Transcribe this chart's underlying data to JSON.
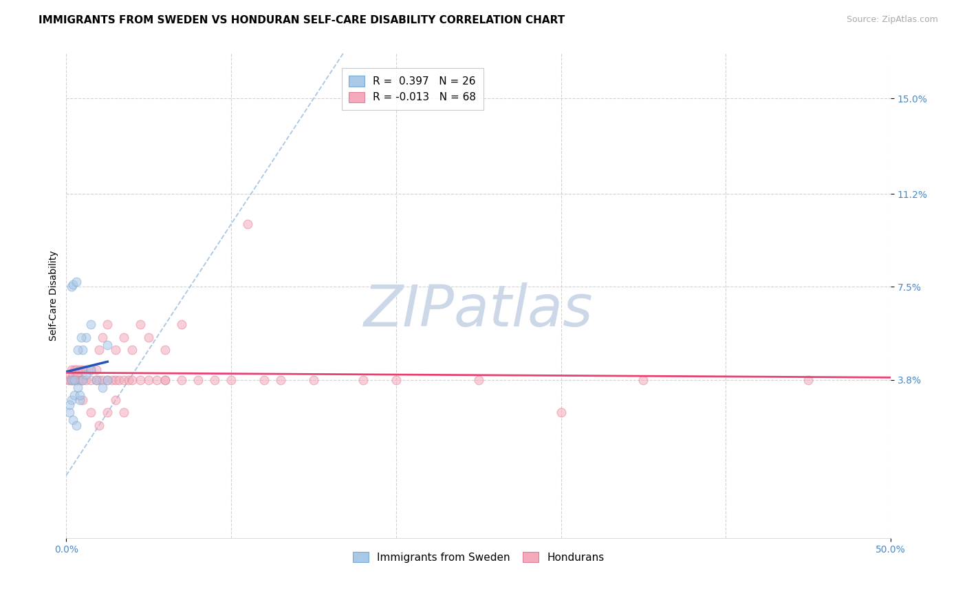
{
  "title": "IMMIGRANTS FROM SWEDEN VS HONDURAN SELF-CARE DISABILITY CORRELATION CHART",
  "source": "Source: ZipAtlas.com",
  "ylabel": "Self-Care Disability",
  "xlim": [
    0.0,
    0.5
  ],
  "ylim": [
    -0.025,
    0.168
  ],
  "xticks": [
    0.0,
    0.5
  ],
  "xticklabels": [
    "0.0%",
    "50.0%"
  ],
  "ytick_values": [
    0.038,
    0.075,
    0.112,
    0.15
  ],
  "ytick_labels": [
    "3.8%",
    "7.5%",
    "11.2%",
    "15.0%"
  ],
  "grid_color": "#cccccc",
  "background_color": "#ffffff",
  "sweden_R": 0.397,
  "sweden_N": 26,
  "honduran_R": -0.013,
  "honduran_N": 68,
  "sweden_color": "#aac8e8",
  "honduran_color": "#f4aabb",
  "sweden_edge_color": "#7aaad0",
  "honduran_edge_color": "#e08098",
  "sweden_line_color": "#2255bb",
  "honduran_line_color": "#e84070",
  "diagonal_color": "#99bbdd",
  "sweden_x": [
    0.002,
    0.003,
    0.005,
    0.007,
    0.01,
    0.012,
    0.015,
    0.018,
    0.022,
    0.025,
    0.003,
    0.004,
    0.006,
    0.008,
    0.002,
    0.004,
    0.006,
    0.008,
    0.01,
    0.012,
    0.003,
    0.005,
    0.007,
    0.009,
    0.015,
    0.025
  ],
  "sweden_y": [
    0.025,
    0.03,
    0.032,
    0.035,
    0.038,
    0.04,
    0.042,
    0.038,
    0.035,
    0.038,
    0.075,
    0.076,
    0.077,
    0.03,
    0.028,
    0.022,
    0.02,
    0.032,
    0.05,
    0.055,
    0.038,
    0.038,
    0.05,
    0.055,
    0.06,
    0.052
  ],
  "honduran_x": [
    0.001,
    0.002,
    0.002,
    0.003,
    0.003,
    0.004,
    0.004,
    0.005,
    0.005,
    0.006,
    0.006,
    0.007,
    0.007,
    0.008,
    0.008,
    0.009,
    0.01,
    0.01,
    0.012,
    0.012,
    0.015,
    0.015,
    0.018,
    0.018,
    0.02,
    0.02,
    0.022,
    0.022,
    0.025,
    0.025,
    0.028,
    0.03,
    0.03,
    0.032,
    0.035,
    0.035,
    0.038,
    0.04,
    0.04,
    0.045,
    0.045,
    0.05,
    0.055,
    0.06,
    0.06,
    0.07,
    0.08,
    0.09,
    0.1,
    0.11,
    0.13,
    0.15,
    0.18,
    0.2,
    0.25,
    0.3,
    0.35,
    0.01,
    0.015,
    0.02,
    0.025,
    0.03,
    0.035,
    0.05,
    0.07,
    0.12,
    0.45,
    0.06
  ],
  "honduran_y": [
    0.038,
    0.038,
    0.04,
    0.038,
    0.042,
    0.038,
    0.04,
    0.038,
    0.042,
    0.038,
    0.042,
    0.038,
    0.04,
    0.038,
    0.042,
    0.038,
    0.038,
    0.042,
    0.038,
    0.042,
    0.038,
    0.042,
    0.038,
    0.042,
    0.038,
    0.05,
    0.038,
    0.055,
    0.038,
    0.06,
    0.038,
    0.038,
    0.05,
    0.038,
    0.038,
    0.055,
    0.038,
    0.038,
    0.05,
    0.038,
    0.06,
    0.038,
    0.038,
    0.038,
    0.05,
    0.038,
    0.038,
    0.038,
    0.038,
    0.1,
    0.038,
    0.038,
    0.038,
    0.038,
    0.038,
    0.025,
    0.038,
    0.03,
    0.025,
    0.02,
    0.025,
    0.03,
    0.025,
    0.055,
    0.06,
    0.038,
    0.038,
    0.038
  ],
  "legend_label_sweden": "Immigrants from Sweden",
  "legend_label_honduran": "Hondurans",
  "marker_size": 85,
  "marker_alpha": 0.55,
  "title_fontsize": 11,
  "axis_label_fontsize": 10,
  "tick_fontsize": 10,
  "legend_fontsize": 11,
  "source_fontsize": 9,
  "watermark_text": "ZIPatlas",
  "watermark_color": "#ccd8e8",
  "watermark_fontsize": 60
}
